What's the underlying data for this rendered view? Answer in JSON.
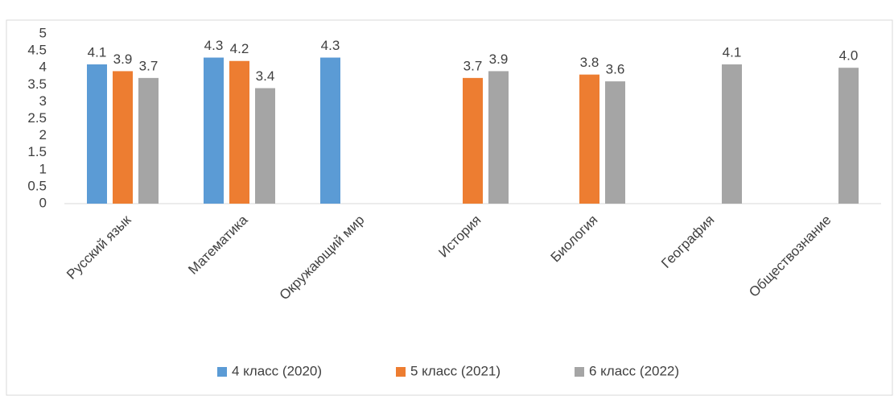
{
  "chart_data": {
    "type": "bar",
    "categories": [
      "Русский язык",
      "Математика",
      "Окружающий мир",
      "История",
      "Биология",
      "География",
      "Обществознание"
    ],
    "series": [
      {
        "name": "4 класс (2020)",
        "color": "#5b9bd5",
        "values": [
          4.1,
          4.3,
          4.3,
          null,
          null,
          null,
          null
        ]
      },
      {
        "name": "5 класс (2021)",
        "color": "#ed7d31",
        "values": [
          3.9,
          4.2,
          null,
          3.7,
          3.8,
          null,
          null
        ]
      },
      {
        "name": "6 класс (2022)",
        "color": "#a5a5a5",
        "values": [
          3.7,
          3.4,
          null,
          3.9,
          3.6,
          4.1,
          4
        ],
        "value_labels": [
          "3.7",
          "3.4",
          null,
          "3.9",
          "3.6",
          "4.1",
          "4.0"
        ]
      }
    ],
    "ylim": [
      0,
      5
    ],
    "yticks": [
      0,
      0.5,
      1,
      1.5,
      2,
      2.5,
      3,
      3.5,
      4,
      4.5,
      5
    ],
    "grid": false,
    "legend": "bottom"
  }
}
